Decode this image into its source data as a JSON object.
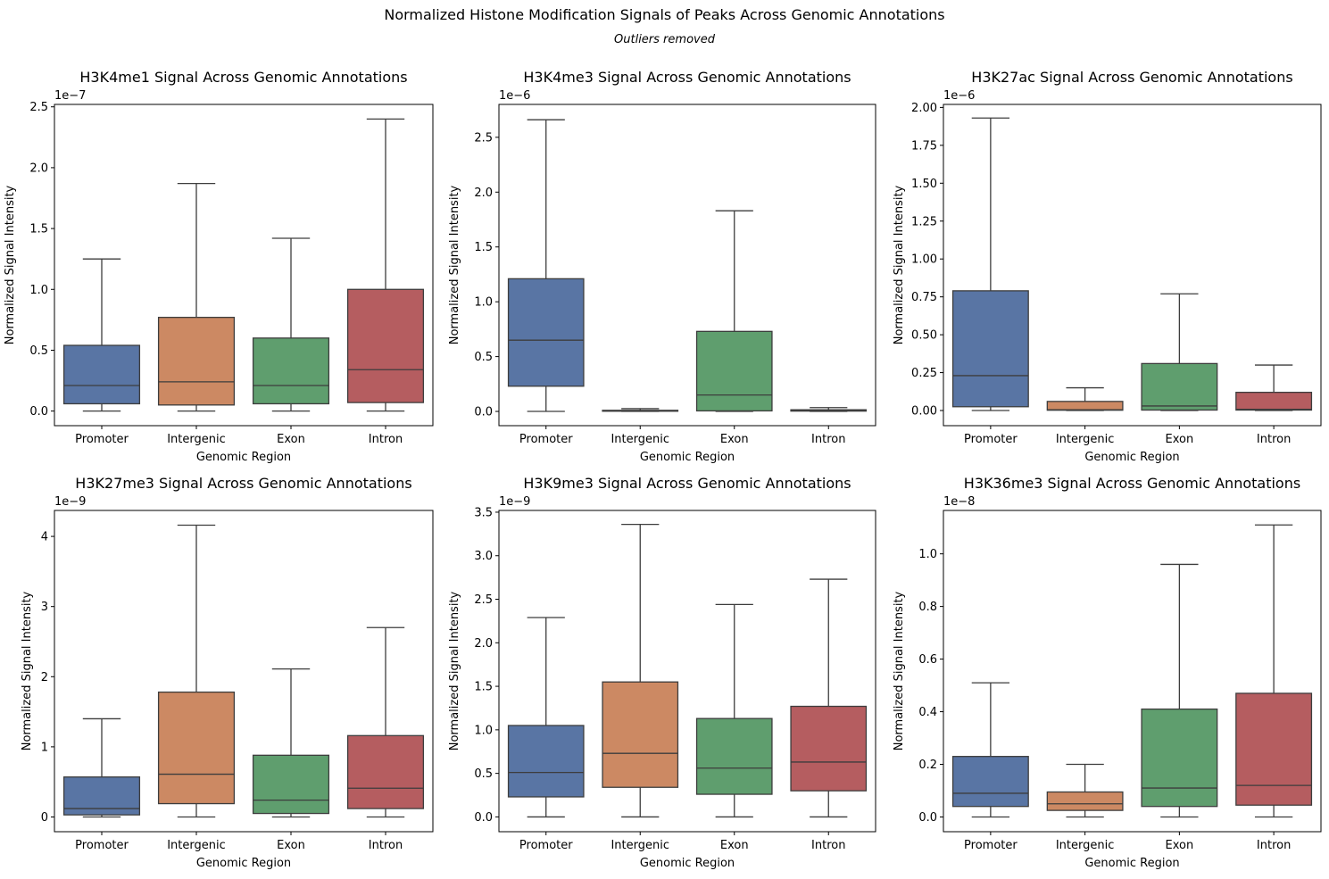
{
  "figure": {
    "suptitle": "Normalized Histone Modification Signals of Peaks Across Genomic Annotations",
    "subtitle": "Outliers removed"
  },
  "colors": {
    "Promoter": "#5975a4",
    "Intergenic": "#cc8963",
    "Exon": "#5f9e6e",
    "Intron": "#b55d60",
    "line": "#3d3d3d"
  },
  "chart_data": [
    {
      "type": "box",
      "title": "H3K4me1 Signal Across Genomic Annotations",
      "xlabel": "Genomic Region",
      "ylabel": "Normalized Signal Intensity",
      "offset_label": "1e−7",
      "categories": [
        "Promoter",
        "Intergenic",
        "Exon",
        "Intron"
      ],
      "ylim": [
        -0.12,
        2.52
      ],
      "yticks": [
        0.0,
        0.5,
        1.0,
        1.5,
        2.0,
        2.5
      ],
      "ytick_labels": [
        "0.0",
        "0.5",
        "1.0",
        "1.5",
        "2.0",
        "2.5"
      ],
      "boxes": [
        {
          "category": "Promoter",
          "min": 0.0,
          "q1": 0.06,
          "median": 0.21,
          "q3": 0.54,
          "max": 1.25
        },
        {
          "category": "Intergenic",
          "min": 0.0,
          "q1": 0.05,
          "median": 0.24,
          "q3": 0.77,
          "max": 1.87
        },
        {
          "category": "Exon",
          "min": 0.0,
          "q1": 0.06,
          "median": 0.21,
          "q3": 0.6,
          "max": 1.42
        },
        {
          "category": "Intron",
          "min": 0.0,
          "q1": 0.07,
          "median": 0.34,
          "q3": 1.0,
          "max": 2.4
        }
      ]
    },
    {
      "type": "box",
      "title": "H3K4me3 Signal Across Genomic Annotations",
      "xlabel": "Genomic Region",
      "ylabel": "Normalized Signal Intensity",
      "offset_label": "1e−6",
      "categories": [
        "Promoter",
        "Intergenic",
        "Exon",
        "Intron"
      ],
      "ylim": [
        -0.13,
        2.8
      ],
      "yticks": [
        0.0,
        0.5,
        1.0,
        1.5,
        2.0,
        2.5
      ],
      "ytick_labels": [
        "0.0",
        "0.5",
        "1.0",
        "1.5",
        "2.0",
        "2.5"
      ],
      "boxes": [
        {
          "category": "Promoter",
          "min": 0.0,
          "q1": 0.23,
          "median": 0.65,
          "q3": 1.21,
          "max": 2.66
        },
        {
          "category": "Intergenic",
          "min": 0.0,
          "q1": 0.002,
          "median": 0.005,
          "q3": 0.01,
          "max": 0.025
        },
        {
          "category": "Exon",
          "min": 0.0,
          "q1": 0.005,
          "median": 0.15,
          "q3": 0.73,
          "max": 1.83
        },
        {
          "category": "Intron",
          "min": 0.0,
          "q1": 0.003,
          "median": 0.007,
          "q3": 0.015,
          "max": 0.035
        }
      ]
    },
    {
      "type": "box",
      "title": "H3K27ac Signal Across Genomic Annotations",
      "xlabel": "Genomic Region",
      "ylabel": "Normalized Signal Intensity",
      "offset_label": "1e−6",
      "categories": [
        "Promoter",
        "Intergenic",
        "Exon",
        "Intron"
      ],
      "ylim": [
        -0.1,
        2.02
      ],
      "yticks": [
        0.0,
        0.25,
        0.5,
        0.75,
        1.0,
        1.25,
        1.5,
        1.75,
        2.0
      ],
      "ytick_labels": [
        "0.00",
        "0.25",
        "0.50",
        "0.75",
        "1.00",
        "1.25",
        "1.50",
        "1.75",
        "2.00"
      ],
      "boxes": [
        {
          "category": "Promoter",
          "min": 0.0,
          "q1": 0.025,
          "median": 0.23,
          "q3": 0.79,
          "max": 1.93
        },
        {
          "category": "Intergenic",
          "min": 0.0,
          "q1": 0.002,
          "median": 0.005,
          "q3": 0.06,
          "max": 0.15
        },
        {
          "category": "Exon",
          "min": 0.0,
          "q1": 0.003,
          "median": 0.03,
          "q3": 0.31,
          "max": 0.77
        },
        {
          "category": "Intron",
          "min": 0.0,
          "q1": 0.003,
          "median": 0.008,
          "q3": 0.12,
          "max": 0.3
        }
      ]
    },
    {
      "type": "box",
      "title": "H3K27me3 Signal Across Genomic Annotations",
      "xlabel": "Genomic Region",
      "ylabel": "Normalized Signal Intensity",
      "offset_label": "1e−9",
      "categories": [
        "Promoter",
        "Intergenic",
        "Exon",
        "Intron"
      ],
      "ylim": [
        -0.21,
        4.37
      ],
      "yticks": [
        0,
        1,
        2,
        3,
        4
      ],
      "ytick_labels": [
        "0",
        "1",
        "2",
        "3",
        "4"
      ],
      "boxes": [
        {
          "category": "Promoter",
          "min": 0.0,
          "q1": 0.03,
          "median": 0.12,
          "q3": 0.57,
          "max": 1.4
        },
        {
          "category": "Intergenic",
          "min": 0.0,
          "q1": 0.19,
          "median": 0.61,
          "q3": 1.78,
          "max": 4.16
        },
        {
          "category": "Exon",
          "min": 0.0,
          "q1": 0.05,
          "median": 0.24,
          "q3": 0.88,
          "max": 2.11
        },
        {
          "category": "Intron",
          "min": 0.0,
          "q1": 0.12,
          "median": 0.41,
          "q3": 1.16,
          "max": 2.7
        }
      ]
    },
    {
      "type": "box",
      "title": "H3K9me3 Signal Across Genomic Annotations",
      "xlabel": "Genomic Region",
      "ylabel": "Normalized Signal Intensity",
      "offset_label": "1e−9",
      "categories": [
        "Promoter",
        "Intergenic",
        "Exon",
        "Intron"
      ],
      "ylim": [
        -0.17,
        3.52
      ],
      "yticks": [
        0.0,
        0.5,
        1.0,
        1.5,
        2.0,
        2.5,
        3.0,
        3.5
      ],
      "ytick_labels": [
        "0.0",
        "0.5",
        "1.0",
        "1.5",
        "2.0",
        "2.5",
        "3.0",
        "3.5"
      ],
      "boxes": [
        {
          "category": "Promoter",
          "min": 0.0,
          "q1": 0.23,
          "median": 0.51,
          "q3": 1.05,
          "max": 2.29
        },
        {
          "category": "Intergenic",
          "min": 0.0,
          "q1": 0.34,
          "median": 0.73,
          "q3": 1.55,
          "max": 3.36
        },
        {
          "category": "Exon",
          "min": 0.0,
          "q1": 0.26,
          "median": 0.56,
          "q3": 1.13,
          "max": 2.44
        },
        {
          "category": "Intron",
          "min": 0.0,
          "q1": 0.3,
          "median": 0.63,
          "q3": 1.27,
          "max": 2.73
        }
      ]
    },
    {
      "type": "box",
      "title": "H3K36me3 Signal Across Genomic Annotations",
      "xlabel": "Genomic Region",
      "ylabel": "Normalized Signal Intensity",
      "offset_label": "1e−8",
      "categories": [
        "Promoter",
        "Intergenic",
        "Exon",
        "Intron"
      ],
      "ylim": [
        -0.056,
        1.165
      ],
      "yticks": [
        0.0,
        0.2,
        0.4,
        0.6,
        0.8,
        1.0
      ],
      "ytick_labels": [
        "0.0",
        "0.2",
        "0.4",
        "0.6",
        "0.8",
        "1.0"
      ],
      "boxes": [
        {
          "category": "Promoter",
          "min": 0.0,
          "q1": 0.04,
          "median": 0.09,
          "q3": 0.23,
          "max": 0.51
        },
        {
          "category": "Intergenic",
          "min": 0.0,
          "q1": 0.025,
          "median": 0.05,
          "q3": 0.095,
          "max": 0.2
        },
        {
          "category": "Exon",
          "min": 0.0,
          "q1": 0.04,
          "median": 0.11,
          "q3": 0.41,
          "max": 0.96
        },
        {
          "category": "Intron",
          "min": 0.0,
          "q1": 0.045,
          "median": 0.12,
          "q3": 0.47,
          "max": 1.11
        }
      ]
    }
  ]
}
